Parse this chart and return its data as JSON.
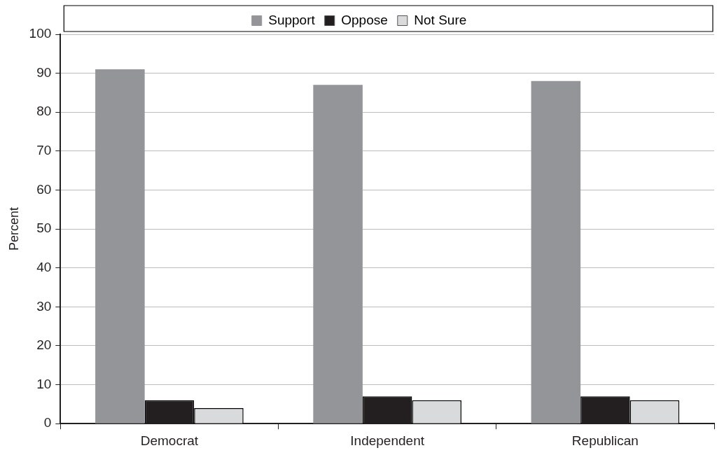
{
  "chart_data": {
    "type": "bar",
    "ylabel": "Percent",
    "categories": [
      "Democrat",
      "Independent",
      "Republican"
    ],
    "series": [
      {
        "name": "Support",
        "color": "#939598",
        "values": [
          91,
          87,
          88
        ]
      },
      {
        "name": "Oppose",
        "color": "#231f20",
        "values": [
          6,
          7,
          7
        ]
      },
      {
        "name": "Not Sure",
        "color": "#d9dadb",
        "values": [
          4,
          6,
          6
        ]
      }
    ],
    "ylim": [
      0,
      100
    ],
    "yticks": [
      0,
      10,
      20,
      30,
      40,
      50,
      60,
      70,
      80,
      90,
      100
    ],
    "grid": "y",
    "legend": "top"
  }
}
